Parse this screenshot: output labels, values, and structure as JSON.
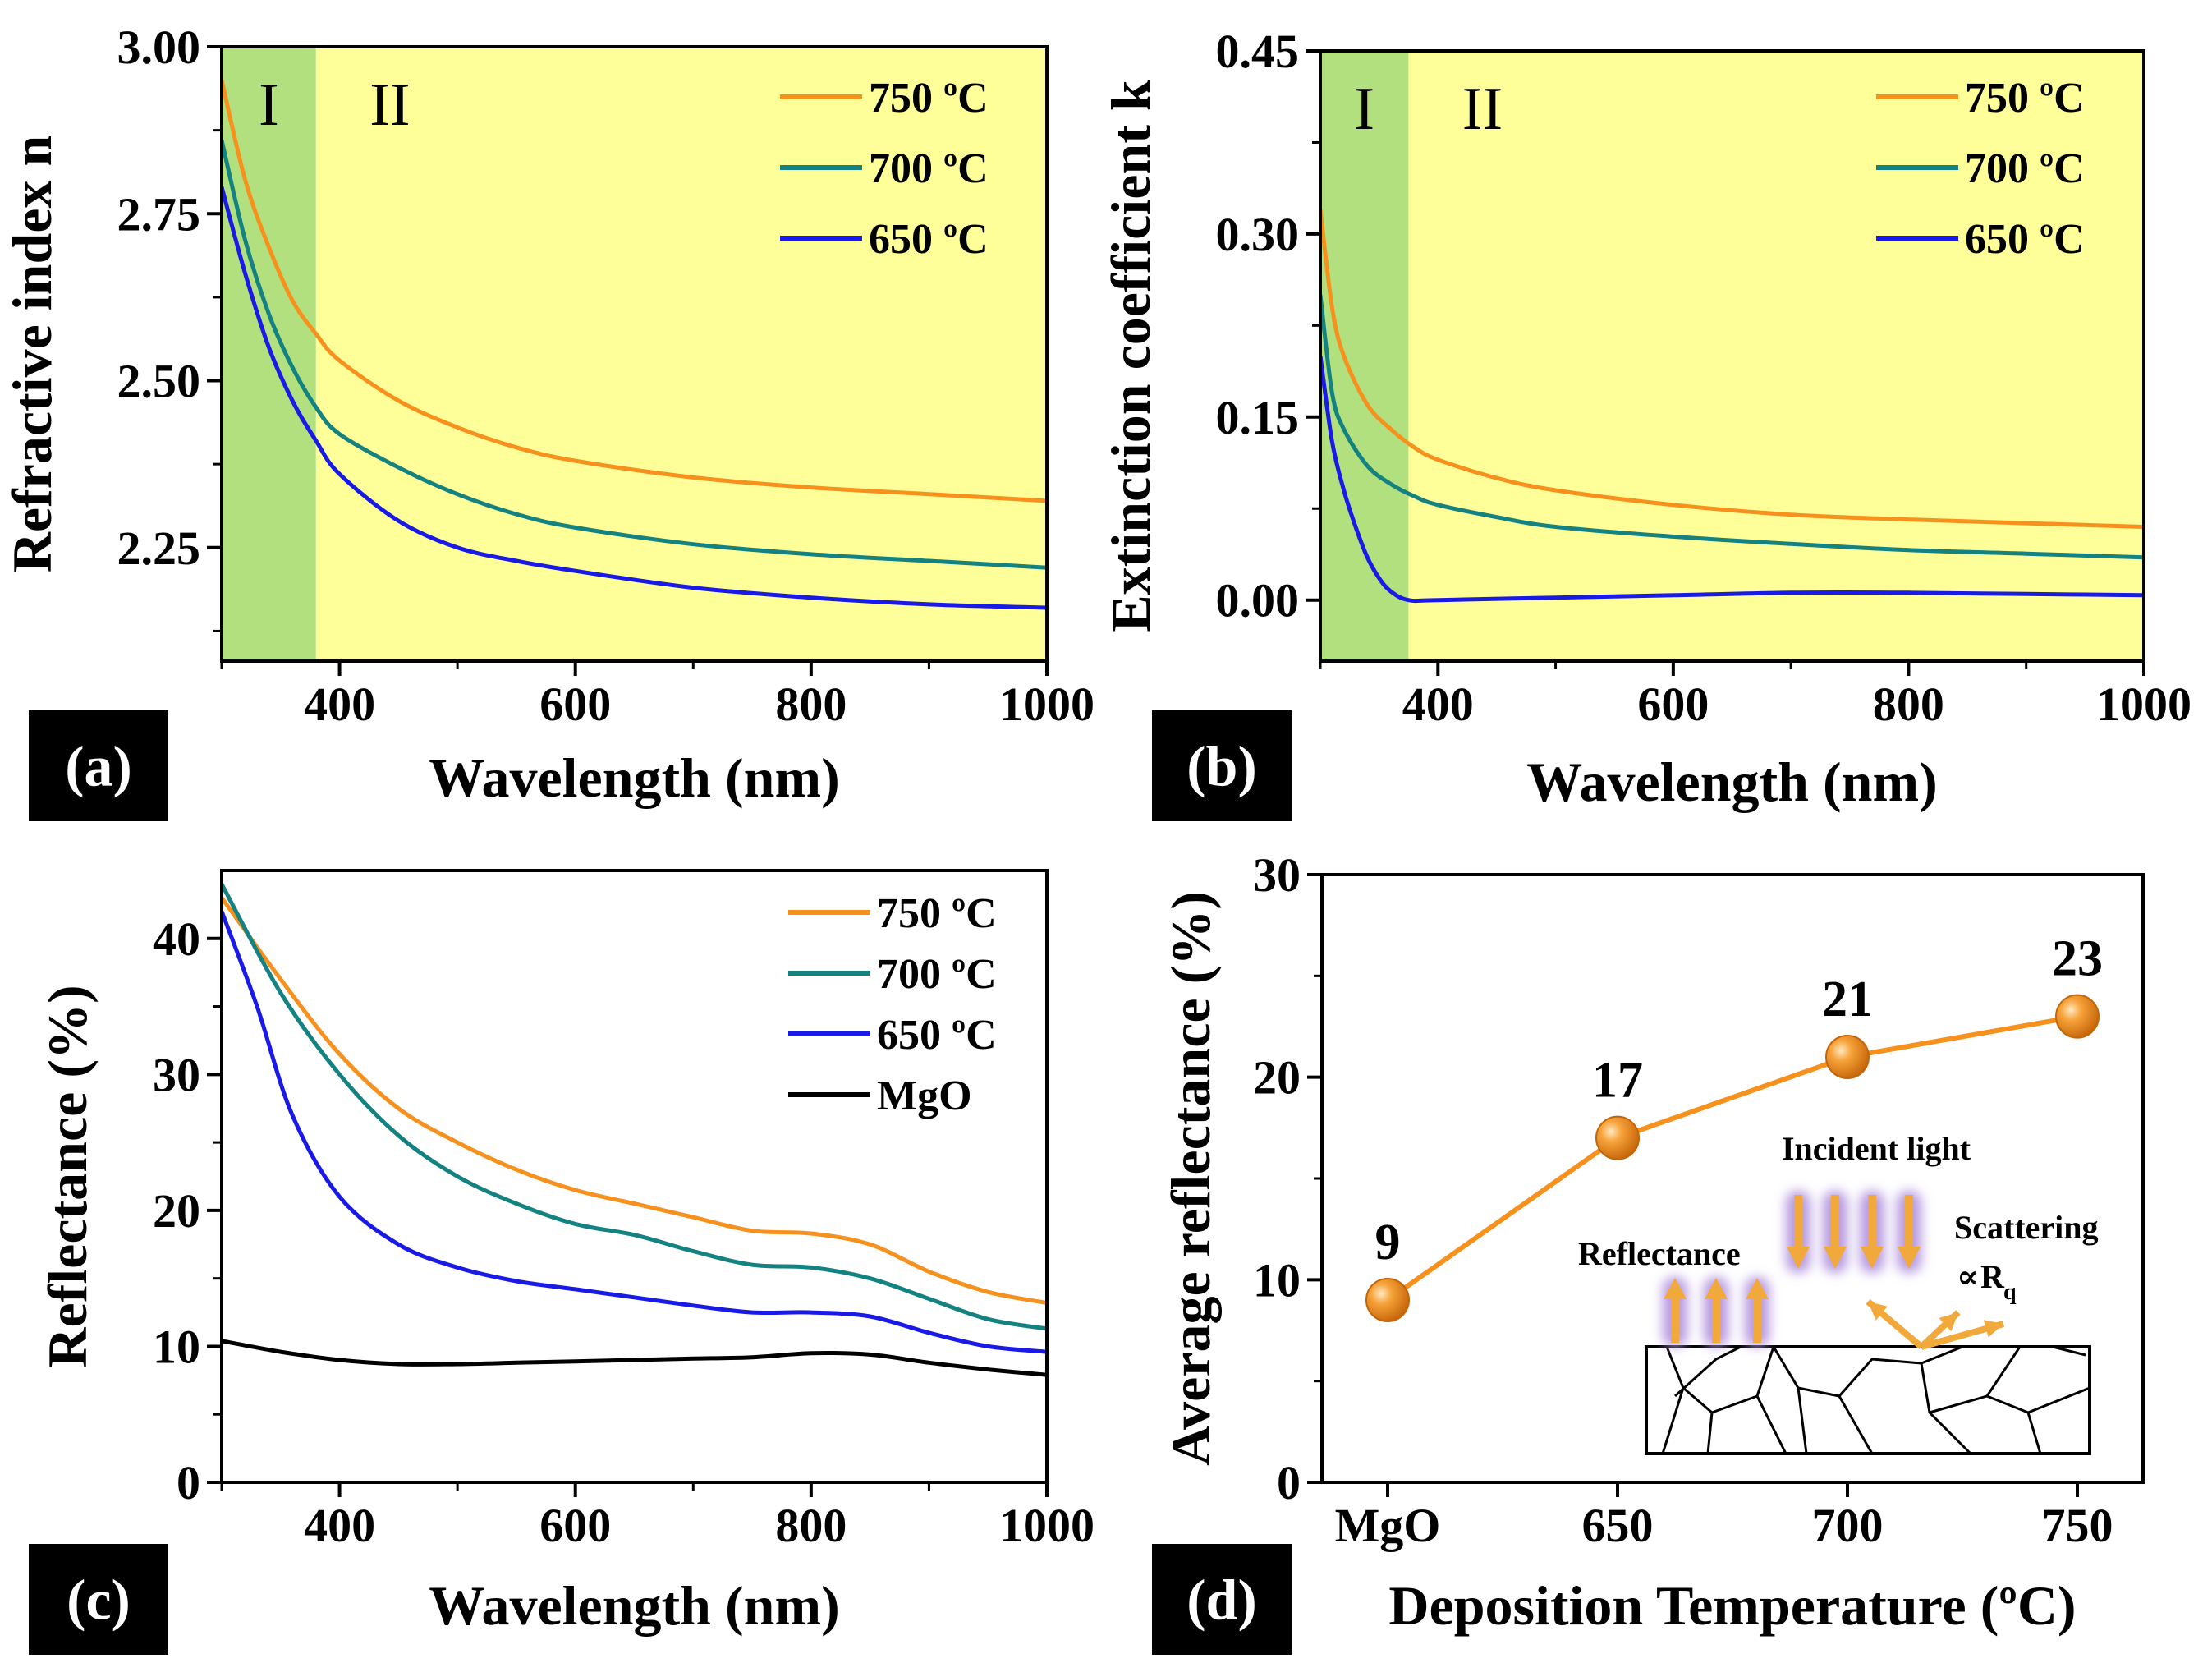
{
  "chart_data": [
    {
      "id": "a",
      "type": "line",
      "panel_label": "(a)",
      "xlabel": "Wavelength (nm)",
      "ylabel": "Refractive index n",
      "xlim": [
        300,
        1000
      ],
      "ylim": [
        2.08,
        3.0
      ],
      "xticks": [
        400,
        600,
        800,
        1000
      ],
      "yticks": [
        2.25,
        2.5,
        2.75,
        3.0
      ],
      "ytick_labels": [
        "2.25",
        "2.50",
        "2.75",
        "3.00"
      ],
      "regions": [
        {
          "label": "I",
          "x0": 300,
          "x1": 380,
          "color": "#b2e07e"
        },
        {
          "label": "II",
          "x0": 380,
          "x1": 1000,
          "color": "#ffff99"
        }
      ],
      "legend": "top-right",
      "series": [
        {
          "name": "750 ºC",
          "color": "#f7911e",
          "x": [
            300,
            320,
            340,
            360,
            380,
            400,
            450,
            500,
            550,
            600,
            700,
            800,
            900,
            1000
          ],
          "y": [
            2.95,
            2.8,
            2.7,
            2.62,
            2.57,
            2.53,
            2.47,
            2.43,
            2.4,
            2.38,
            2.355,
            2.34,
            2.33,
            2.32
          ]
        },
        {
          "name": "700 ºC",
          "color": "#148280",
          "x": [
            300,
            320,
            340,
            360,
            380,
            400,
            450,
            500,
            550,
            600,
            700,
            800,
            900,
            1000
          ],
          "y": [
            2.86,
            2.71,
            2.6,
            2.52,
            2.46,
            2.42,
            2.37,
            2.33,
            2.3,
            2.28,
            2.255,
            2.24,
            2.23,
            2.22
          ]
        },
        {
          "name": "650 ºC",
          "color": "#1a1ae6",
          "x": [
            300,
            320,
            340,
            360,
            380,
            400,
            450,
            500,
            550,
            600,
            700,
            800,
            900,
            1000
          ],
          "y": [
            2.79,
            2.66,
            2.55,
            2.47,
            2.41,
            2.36,
            2.29,
            2.25,
            2.23,
            2.215,
            2.19,
            2.175,
            2.165,
            2.16
          ]
        }
      ]
    },
    {
      "id": "b",
      "type": "line",
      "panel_label": "(b)",
      "xlabel": "Wavelength (nm)",
      "ylabel": "Extinction coefficient k",
      "xlim": [
        300,
        1000
      ],
      "ylim": [
        -0.05,
        0.45
      ],
      "xticks": [
        400,
        600,
        800,
        1000
      ],
      "yticks": [
        0.0,
        0.15,
        0.3,
        0.45
      ],
      "ytick_labels": [
        "0.00",
        "0.15",
        "0.30",
        "0.45"
      ],
      "regions": [
        {
          "label": "I",
          "x0": 300,
          "x1": 375,
          "color": "#b2e07e"
        },
        {
          "label": "II",
          "x0": 375,
          "x1": 1000,
          "color": "#ffff99"
        }
      ],
      "legend": "top-right",
      "series": [
        {
          "name": "750 ºC",
          "color": "#f7911e",
          "x": [
            300,
            310,
            320,
            340,
            360,
            380,
            400,
            450,
            500,
            600,
            700,
            800,
            900,
            1000
          ],
          "y": [
            0.32,
            0.24,
            0.2,
            0.16,
            0.14,
            0.125,
            0.115,
            0.1,
            0.09,
            0.078,
            0.07,
            0.066,
            0.063,
            0.06
          ]
        },
        {
          "name": "700 ºC",
          "color": "#148280",
          "x": [
            300,
            310,
            320,
            340,
            360,
            380,
            400,
            450,
            500,
            600,
            700,
            800,
            900,
            1000
          ],
          "y": [
            0.25,
            0.17,
            0.14,
            0.11,
            0.095,
            0.085,
            0.078,
            0.068,
            0.06,
            0.052,
            0.046,
            0.041,
            0.038,
            0.035
          ]
        },
        {
          "name": "650 ºC",
          "color": "#1a1ae6",
          "x": [
            300,
            310,
            320,
            330,
            340,
            350,
            360,
            375,
            400,
            500,
            600,
            700,
            800,
            900,
            1000
          ],
          "y": [
            0.2,
            0.13,
            0.09,
            0.06,
            0.035,
            0.018,
            0.007,
            0.0,
            0.0,
            0.002,
            0.004,
            0.006,
            0.006,
            0.005,
            0.004
          ]
        }
      ]
    },
    {
      "id": "c",
      "type": "line",
      "panel_label": "(c)",
      "xlabel": "Wavelength (nm)",
      "ylabel": "Reflectance (%)",
      "xlim": [
        300,
        1000
      ],
      "ylim": [
        0,
        45
      ],
      "xticks": [
        400,
        600,
        800,
        1000
      ],
      "yticks": [
        0,
        10,
        20,
        30,
        40
      ],
      "ytick_labels": [
        "0",
        "10",
        "20",
        "30",
        "40"
      ],
      "legend": "top-right",
      "series": [
        {
          "name": "750 ºC",
          "color": "#f7911e",
          "x": [
            300,
            350,
            400,
            450,
            500,
            550,
            600,
            650,
            700,
            750,
            800,
            850,
            900,
            950,
            1000
          ],
          "y": [
            43,
            37,
            31.5,
            27.5,
            25,
            23,
            21.5,
            20.5,
            19.5,
            18.5,
            18.3,
            17.5,
            15.5,
            14,
            13.2
          ]
        },
        {
          "name": "700 ºC",
          "color": "#148280",
          "x": [
            300,
            350,
            400,
            450,
            500,
            550,
            600,
            650,
            700,
            750,
            800,
            850,
            900,
            950,
            1000
          ],
          "y": [
            44,
            36,
            30,
            25.5,
            22.5,
            20.5,
            19,
            18.2,
            17,
            16,
            15.8,
            15,
            13.5,
            12,
            11.3
          ]
        },
        {
          "name": "650 ºC",
          "color": "#1a1ae6",
          "x": [
            300,
            330,
            360,
            400,
            450,
            500,
            550,
            600,
            650,
            700,
            750,
            800,
            850,
            900,
            950,
            1000
          ],
          "y": [
            42,
            35,
            27,
            21,
            17.5,
            15.8,
            14.8,
            14.2,
            13.6,
            13,
            12.5,
            12.5,
            12.2,
            11,
            10,
            9.6
          ]
        },
        {
          "name": "MgO",
          "color": "#000000",
          "x": [
            300,
            350,
            400,
            450,
            500,
            550,
            600,
            650,
            700,
            750,
            800,
            850,
            900,
            950,
            1000
          ],
          "y": [
            10.4,
            9.6,
            9,
            8.7,
            8.7,
            8.8,
            8.9,
            9,
            9.1,
            9.2,
            9.5,
            9.4,
            8.8,
            8.3,
            7.9
          ]
        }
      ]
    },
    {
      "id": "d",
      "type": "line",
      "panel_label": "(d)",
      "xlabel": "Deposition Temperature (ºC)",
      "ylabel": "Average reflectance (%)",
      "categories": [
        "MgO",
        "650",
        "700",
        "750"
      ],
      "values": [
        9,
        17,
        21,
        23
      ],
      "ylim": [
        0,
        30
      ],
      "yticks": [
        0,
        10,
        20,
        30
      ],
      "ytick_labels": [
        "0",
        "10",
        "20",
        "30"
      ],
      "color": "#f7911e",
      "inset": {
        "incident_label": "Incident light",
        "reflectance_label": "Reflectance",
        "scattering_label": "Scattering",
        "propto_symbol": "∝",
        "rq_main": "R",
        "rq_sub": "q"
      }
    }
  ]
}
